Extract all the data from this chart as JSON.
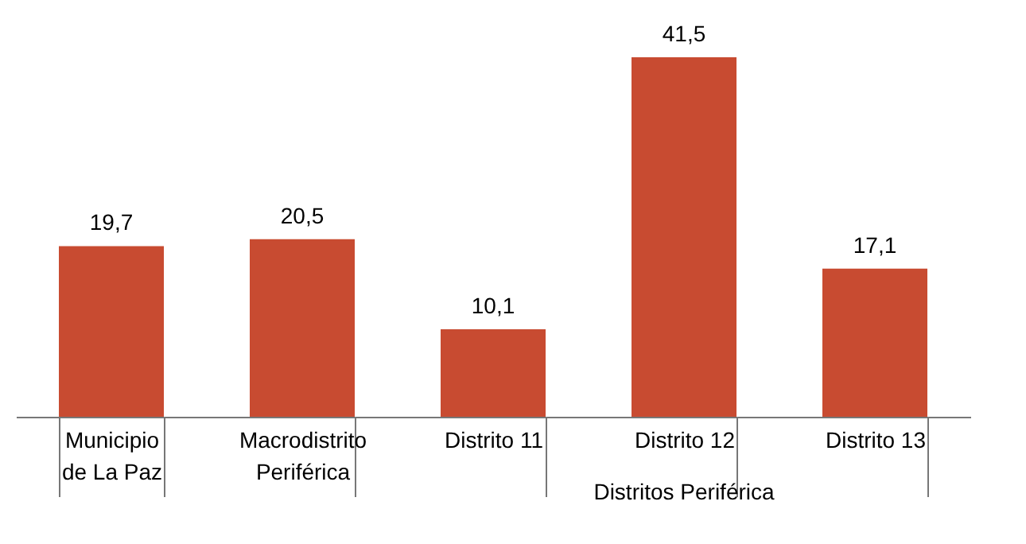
{
  "chart_data": {
    "type": "bar",
    "categories": [
      "Municipio de La Paz",
      "Macrodistrito Periférica",
      "Distrito 11",
      "Distrito 12",
      "Distrito 13"
    ],
    "values": [
      19.7,
      20.5,
      10.1,
      41.5,
      17.1
    ],
    "value_labels": [
      "19,7",
      "20,5",
      "10,1",
      "41,5",
      "17,1"
    ],
    "color": "#c84b31",
    "annotations": [
      "Distritos Periférica"
    ]
  }
}
